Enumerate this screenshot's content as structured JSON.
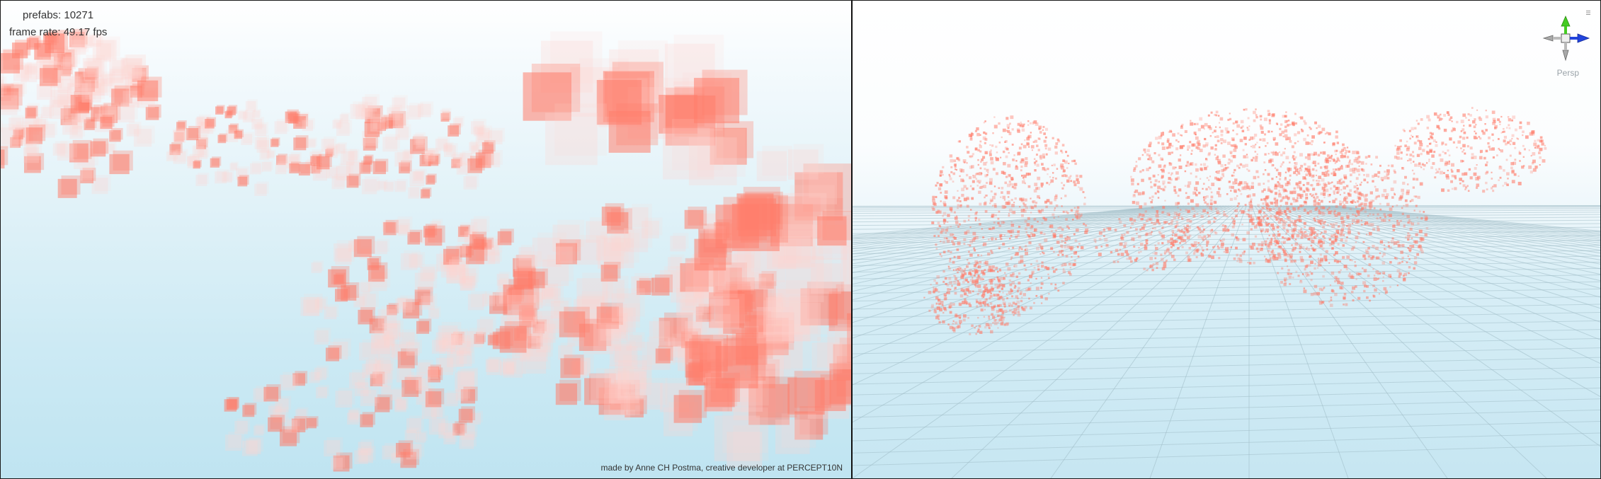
{
  "game_view": {
    "prefab_count": "prefabs: 10271",
    "frame_rate": "frame rate: 49.17 fps",
    "credit": "made by Anne CH Postma, creative developer at PERCEPT10N"
  },
  "scene_view": {
    "projection_label": "Persp"
  },
  "colors": {
    "cube": "#ff7d6b",
    "cube_light": "#ffd5cf",
    "grid": "#9fbcc6",
    "gizmo_y": "#44cc22",
    "gizmo_z": "#2244dd"
  }
}
